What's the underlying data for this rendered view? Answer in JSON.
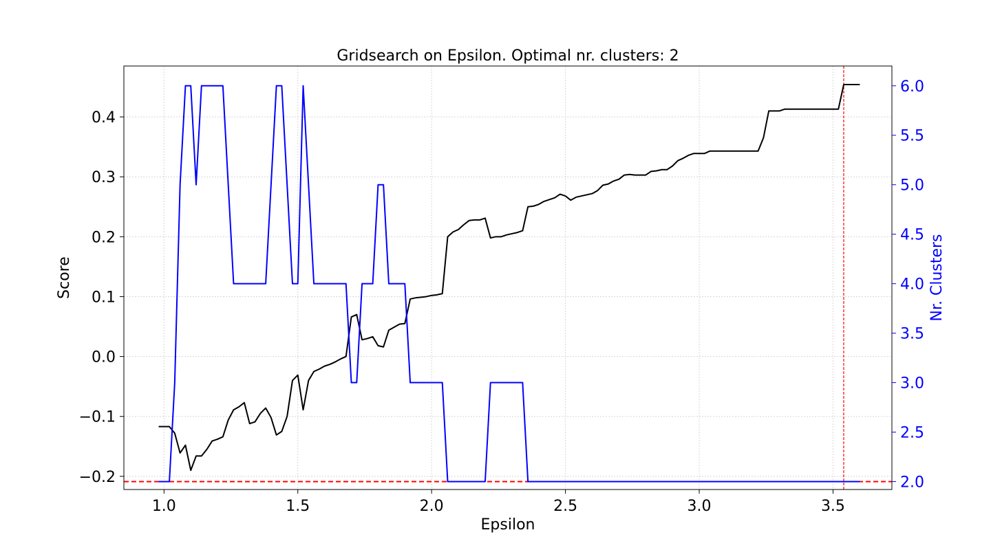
{
  "chart_data": {
    "type": "line",
    "title": "Gridsearch on Epsilon. Optimal nr. clusters: 2",
    "xlabel": "Epsilon",
    "ylabel_left": "Score",
    "ylabel_right": "Nr. Clusters",
    "xlim": [
      0.85,
      3.72
    ],
    "ylim_left": [
      -0.222,
      0.485
    ],
    "ylim_right": [
      1.92,
      6.2
    ],
    "x_ticks": [
      "1.0",
      "1.5",
      "2.0",
      "2.5",
      "3.0",
      "3.5"
    ],
    "y_left_ticks": [
      "−0.2",
      "−0.1",
      "0.0",
      "0.1",
      "0.2",
      "0.3",
      "0.4"
    ],
    "y_right_ticks": [
      "2.0",
      "2.5",
      "3.0",
      "3.5",
      "4.0",
      "4.5",
      "5.0",
      "5.5",
      "6.0"
    ],
    "grid": true,
    "colors": {
      "score": "#000000",
      "clusters": "#0000ff",
      "reference": "#ff0000",
      "right_axis": "#0000ff"
    },
    "series": [
      {
        "axis": "left",
        "points": [
          [
            0.98,
            -0.117
          ],
          [
            1.0,
            -0.117
          ],
          [
            1.02,
            -0.117
          ],
          [
            1.04,
            -0.128
          ],
          [
            1.06,
            -0.161
          ],
          [
            1.08,
            -0.148
          ],
          [
            1.1,
            -0.19
          ],
          [
            1.12,
            -0.166
          ],
          [
            1.14,
            -0.166
          ],
          [
            1.16,
            -0.155
          ],
          [
            1.18,
            -0.141
          ],
          [
            1.2,
            -0.138
          ],
          [
            1.22,
            -0.134
          ],
          [
            1.24,
            -0.106
          ],
          [
            1.26,
            -0.089
          ],
          [
            1.28,
            -0.084
          ],
          [
            1.3,
            -0.077
          ],
          [
            1.32,
            -0.112
          ],
          [
            1.34,
            -0.109
          ],
          [
            1.36,
            -0.095
          ],
          [
            1.38,
            -0.086
          ],
          [
            1.4,
            -0.102
          ],
          [
            1.42,
            -0.131
          ],
          [
            1.44,
            -0.125
          ],
          [
            1.46,
            -0.1
          ],
          [
            1.48,
            -0.04
          ],
          [
            1.5,
            -0.031
          ],
          [
            1.52,
            -0.089
          ],
          [
            1.54,
            -0.04
          ],
          [
            1.56,
            -0.025
          ],
          [
            1.58,
            -0.021
          ],
          [
            1.6,
            -0.016
          ],
          [
            1.62,
            -0.013
          ],
          [
            1.64,
            -0.009
          ],
          [
            1.66,
            -0.004
          ],
          [
            1.68,
            0.0
          ],
          [
            1.7,
            0.066
          ],
          [
            1.72,
            0.07
          ],
          [
            1.74,
            0.028
          ],
          [
            1.76,
            0.03
          ],
          [
            1.78,
            0.033
          ],
          [
            1.8,
            0.018
          ],
          [
            1.82,
            0.016
          ],
          [
            1.84,
            0.044
          ],
          [
            1.86,
            0.049
          ],
          [
            1.88,
            0.054
          ],
          [
            1.9,
            0.055
          ],
          [
            1.92,
            0.096
          ],
          [
            1.94,
            0.098
          ],
          [
            1.96,
            0.099
          ],
          [
            1.98,
            0.1
          ],
          [
            2.0,
            0.102
          ],
          [
            2.02,
            0.103
          ],
          [
            2.04,
            0.105
          ],
          [
            2.06,
            0.2
          ],
          [
            2.08,
            0.208
          ],
          [
            2.1,
            0.212
          ],
          [
            2.12,
            0.22
          ],
          [
            2.14,
            0.227
          ],
          [
            2.16,
            0.228
          ],
          [
            2.18,
            0.228
          ],
          [
            2.2,
            0.231
          ],
          [
            2.22,
            0.198
          ],
          [
            2.24,
            0.2
          ],
          [
            2.26,
            0.2
          ],
          [
            2.28,
            0.203
          ],
          [
            2.3,
            0.205
          ],
          [
            2.32,
            0.207
          ],
          [
            2.34,
            0.21
          ],
          [
            2.36,
            0.25
          ],
          [
            2.38,
            0.251
          ],
          [
            2.4,
            0.254
          ],
          [
            2.42,
            0.259
          ],
          [
            2.44,
            0.262
          ],
          [
            2.46,
            0.265
          ],
          [
            2.48,
            0.271
          ],
          [
            2.5,
            0.268
          ],
          [
            2.52,
            0.261
          ],
          [
            2.54,
            0.266
          ],
          [
            2.56,
            0.268
          ],
          [
            2.58,
            0.27
          ],
          [
            2.6,
            0.272
          ],
          [
            2.62,
            0.277
          ],
          [
            2.64,
            0.286
          ],
          [
            2.66,
            0.288
          ],
          [
            2.68,
            0.293
          ],
          [
            2.7,
            0.296
          ],
          [
            2.72,
            0.303
          ],
          [
            2.74,
            0.304
          ],
          [
            2.76,
            0.303
          ],
          [
            2.78,
            0.303
          ],
          [
            2.8,
            0.303
          ],
          [
            2.82,
            0.309
          ],
          [
            2.84,
            0.31
          ],
          [
            2.86,
            0.312
          ],
          [
            2.88,
            0.312
          ],
          [
            2.9,
            0.318
          ],
          [
            2.92,
            0.327
          ],
          [
            2.94,
            0.331
          ],
          [
            2.96,
            0.336
          ],
          [
            2.98,
            0.339
          ],
          [
            3.0,
            0.339
          ],
          [
            3.02,
            0.339
          ],
          [
            3.04,
            0.343
          ],
          [
            3.06,
            0.343
          ],
          [
            3.08,
            0.343
          ],
          [
            3.1,
            0.343
          ],
          [
            3.12,
            0.343
          ],
          [
            3.14,
            0.343
          ],
          [
            3.16,
            0.343
          ],
          [
            3.18,
            0.343
          ],
          [
            3.2,
            0.343
          ],
          [
            3.22,
            0.343
          ],
          [
            3.24,
            0.365
          ],
          [
            3.26,
            0.41
          ],
          [
            3.28,
            0.41
          ],
          [
            3.3,
            0.41
          ],
          [
            3.32,
            0.413
          ],
          [
            3.34,
            0.413
          ],
          [
            3.36,
            0.413
          ],
          [
            3.38,
            0.413
          ],
          [
            3.4,
            0.413
          ],
          [
            3.42,
            0.413
          ],
          [
            3.44,
            0.413
          ],
          [
            3.46,
            0.413
          ],
          [
            3.48,
            0.413
          ],
          [
            3.5,
            0.413
          ],
          [
            3.52,
            0.413
          ],
          [
            3.54,
            0.454
          ],
          [
            3.56,
            0.454
          ],
          [
            3.58,
            0.454
          ],
          [
            3.6,
            0.454
          ]
        ]
      },
      {
        "axis": "right",
        "points": [
          [
            0.98,
            2
          ],
          [
            1.02,
            2
          ],
          [
            1.04,
            3
          ],
          [
            1.06,
            5
          ],
          [
            1.08,
            6
          ],
          [
            1.1,
            6
          ],
          [
            1.12,
            5
          ],
          [
            1.14,
            6
          ],
          [
            1.16,
            6
          ],
          [
            1.18,
            6
          ],
          [
            1.2,
            6
          ],
          [
            1.22,
            6
          ],
          [
            1.24,
            5
          ],
          [
            1.26,
            4
          ],
          [
            1.28,
            4
          ],
          [
            1.3,
            4
          ],
          [
            1.32,
            4
          ],
          [
            1.34,
            4
          ],
          [
            1.36,
            4
          ],
          [
            1.38,
            4
          ],
          [
            1.4,
            5
          ],
          [
            1.42,
            6
          ],
          [
            1.44,
            6
          ],
          [
            1.46,
            5
          ],
          [
            1.48,
            4
          ],
          [
            1.5,
            4
          ],
          [
            1.52,
            6
          ],
          [
            1.54,
            5
          ],
          [
            1.56,
            4
          ],
          [
            1.58,
            4
          ],
          [
            1.6,
            4
          ],
          [
            1.62,
            4
          ],
          [
            1.64,
            4
          ],
          [
            1.66,
            4
          ],
          [
            1.68,
            4
          ],
          [
            1.7,
            3
          ],
          [
            1.72,
            3
          ],
          [
            1.74,
            4
          ],
          [
            1.76,
            4
          ],
          [
            1.78,
            4
          ],
          [
            1.8,
            5
          ],
          [
            1.82,
            5
          ],
          [
            1.84,
            4
          ],
          [
            1.86,
            4
          ],
          [
            1.88,
            4
          ],
          [
            1.9,
            4
          ],
          [
            1.92,
            3
          ],
          [
            1.94,
            3
          ],
          [
            1.96,
            3
          ],
          [
            1.98,
            3
          ],
          [
            2.0,
            3
          ],
          [
            2.02,
            3
          ],
          [
            2.04,
            3
          ],
          [
            2.06,
            2
          ],
          [
            2.08,
            2
          ],
          [
            2.1,
            2
          ],
          [
            2.12,
            2
          ],
          [
            2.14,
            2
          ],
          [
            2.16,
            2
          ],
          [
            2.18,
            2
          ],
          [
            2.2,
            2
          ],
          [
            2.22,
            3
          ],
          [
            2.24,
            3
          ],
          [
            2.26,
            3
          ],
          [
            2.28,
            3
          ],
          [
            2.3,
            3
          ],
          [
            2.32,
            3
          ],
          [
            2.34,
            3
          ],
          [
            2.36,
            2
          ],
          [
            2.4,
            2
          ],
          [
            2.6,
            2
          ],
          [
            2.8,
            2
          ],
          [
            3.0,
            2
          ],
          [
            3.2,
            2
          ],
          [
            3.4,
            2
          ],
          [
            3.6,
            2
          ]
        ]
      }
    ],
    "reference_lines": [
      {
        "orientation": "horizontal",
        "axis": "right",
        "value": 2
      },
      {
        "orientation": "vertical",
        "value": 3.54
      }
    ]
  }
}
